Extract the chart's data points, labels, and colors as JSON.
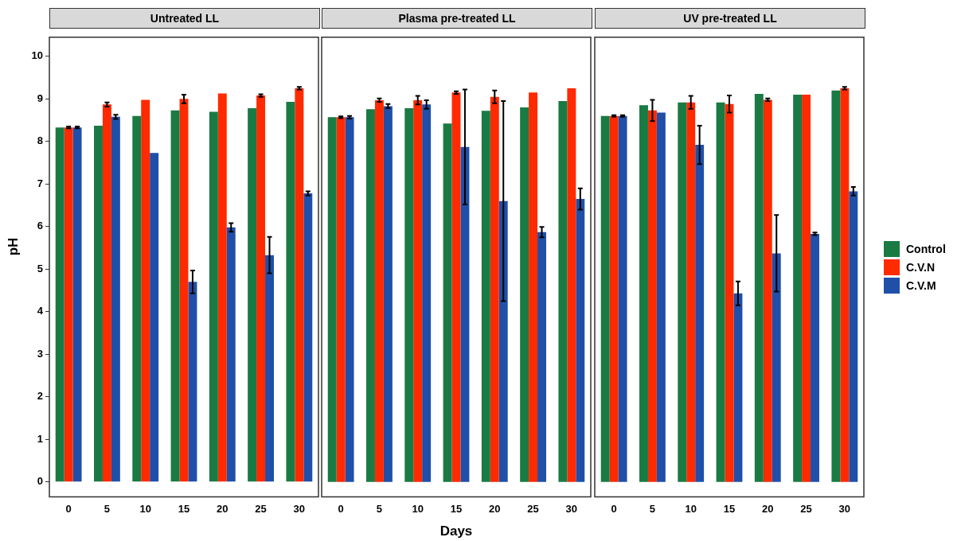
{
  "chart_data": [
    {
      "type": "bar",
      "title": "Untreated LL",
      "ylabel": "pH",
      "categories": [
        "0",
        "5",
        "10",
        "15",
        "20",
        "25",
        "30"
      ],
      "ylim": [
        -0.35,
        10.45
      ],
      "yticks": [
        0,
        1,
        2,
        3,
        4,
        5,
        6,
        7,
        8,
        9,
        10
      ],
      "grid": false,
      "legend": "right",
      "series": [
        {
          "name": "Control",
          "color": "#1a7a43",
          "values": [
            8.33,
            8.37,
            8.6,
            8.73,
            8.7,
            8.78,
            8.93
          ]
        },
        {
          "name": "C.V.N",
          "color": "#ff2a00",
          "values": [
            8.33,
            8.87,
            8.98,
            9.0,
            9.13,
            9.08,
            9.25
          ],
          "errors": [
            0.02,
            0.05,
            null,
            0.1,
            null,
            0.03,
            0.03
          ]
        },
        {
          "name": "C.V.M",
          "color": "#1f4fa8",
          "values": [
            8.33,
            8.58,
            7.73,
            4.7,
            5.98,
            5.33,
            6.78
          ],
          "errors": [
            0.02,
            0.05,
            null,
            0.27,
            0.1,
            0.43,
            0.05
          ]
        }
      ]
    },
    {
      "type": "bar",
      "title": "Plasma pre-treated LL",
      "xlabel": "Days",
      "categories": [
        "0",
        "5",
        "10",
        "15",
        "20",
        "25",
        "30"
      ],
      "ylim": [
        -0.35,
        10.45
      ],
      "tick_labels": "x",
      "grid": false,
      "series": [
        {
          "color": "#1a7a43",
          "values": [
            8.57,
            8.76,
            8.78,
            8.42,
            8.72,
            8.8,
            8.95
          ]
        },
        {
          "color": "#ff2a00",
          "values": [
            8.57,
            8.97,
            8.97,
            9.15,
            9.05,
            9.15,
            9.25
          ],
          "errors": [
            0.02,
            0.04,
            0.1,
            0.03,
            0.15,
            null,
            null
          ]
        },
        {
          "color": "#1f4fa8",
          "values": [
            8.57,
            8.83,
            8.87,
            7.87,
            6.6,
            5.87,
            6.65
          ],
          "errors": [
            0.03,
            0.05,
            0.1,
            1.35,
            2.35,
            0.12,
            0.25
          ]
        }
      ]
    },
    {
      "type": "bar",
      "title": "UV pre-treated LL",
      "categories": [
        "0",
        "5",
        "10",
        "15",
        "20",
        "25",
        "30"
      ],
      "ylim": [
        -0.35,
        10.45
      ],
      "tick_labels": "x",
      "grid": false,
      "series": [
        {
          "color": "#1a7a43",
          "values": [
            8.6,
            8.85,
            8.92,
            8.92,
            9.12,
            9.1,
            9.2
          ]
        },
        {
          "color": "#ff2a00",
          "values": [
            8.6,
            8.73,
            8.92,
            8.88,
            8.98,
            9.1,
            9.25
          ],
          "errors": [
            0.02,
            0.25,
            0.15,
            0.2,
            0.03,
            null,
            0.03
          ]
        },
        {
          "color": "#1f4fa8",
          "values": [
            8.6,
            8.68,
            7.92,
            4.43,
            5.37,
            5.83,
            6.83
          ],
          "errors": [
            0.02,
            null,
            0.45,
            0.28,
            0.9,
            0.03,
            0.1
          ]
        }
      ]
    }
  ]
}
